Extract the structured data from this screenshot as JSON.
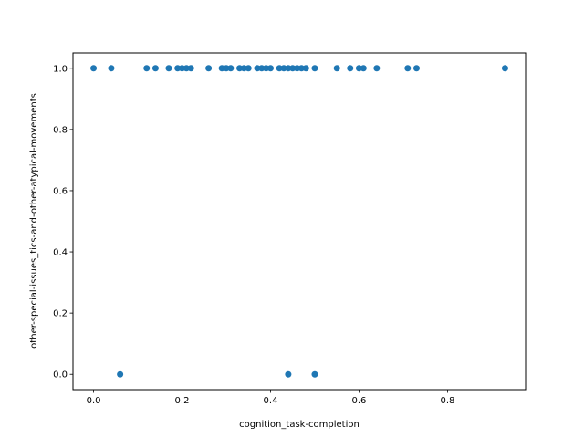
{
  "chart_data": {
    "type": "scatter",
    "title": "",
    "xlabel": "cognition_task-completion",
    "ylabel": "other-special-issues_tics-and-other-atypical-movements",
    "xlim": [
      -0.0465,
      0.9765
    ],
    "ylim": [
      -0.05,
      1.05
    ],
    "xticks": [
      0.0,
      0.2,
      0.4,
      0.6,
      0.8
    ],
    "xtick_labels": [
      "0.0",
      "0.2",
      "0.4",
      "0.6",
      "0.8"
    ],
    "yticks": [
      0.0,
      0.2,
      0.4,
      0.6,
      0.8,
      1.0
    ],
    "ytick_labels": [
      "0.0",
      "0.2",
      "0.4",
      "0.6",
      "0.8",
      "1.0"
    ],
    "grid": false,
    "marker_color": "#1f77b4",
    "series": [
      {
        "points": [
          [
            0.0,
            1
          ],
          [
            0.04,
            1
          ],
          [
            0.12,
            1
          ],
          [
            0.14,
            1
          ],
          [
            0.17,
            1
          ],
          [
            0.19,
            1
          ],
          [
            0.2,
            1
          ],
          [
            0.21,
            1
          ],
          [
            0.22,
            1
          ],
          [
            0.26,
            1
          ],
          [
            0.29,
            1
          ],
          [
            0.3,
            1
          ],
          [
            0.31,
            1
          ],
          [
            0.33,
            1
          ],
          [
            0.34,
            1
          ],
          [
            0.35,
            1
          ],
          [
            0.37,
            1
          ],
          [
            0.38,
            1
          ],
          [
            0.39,
            1
          ],
          [
            0.4,
            1
          ],
          [
            0.42,
            1
          ],
          [
            0.43,
            1
          ],
          [
            0.44,
            1
          ],
          [
            0.45,
            1
          ],
          [
            0.46,
            1
          ],
          [
            0.47,
            1
          ],
          [
            0.48,
            1
          ],
          [
            0.5,
            1
          ],
          [
            0.55,
            1
          ],
          [
            0.58,
            1
          ],
          [
            0.6,
            1
          ],
          [
            0.61,
            1
          ],
          [
            0.64,
            1
          ],
          [
            0.71,
            1
          ],
          [
            0.73,
            1
          ],
          [
            0.93,
            1
          ],
          [
            0.06,
            0
          ],
          [
            0.44,
            0
          ],
          [
            0.5,
            0
          ]
        ]
      }
    ]
  }
}
